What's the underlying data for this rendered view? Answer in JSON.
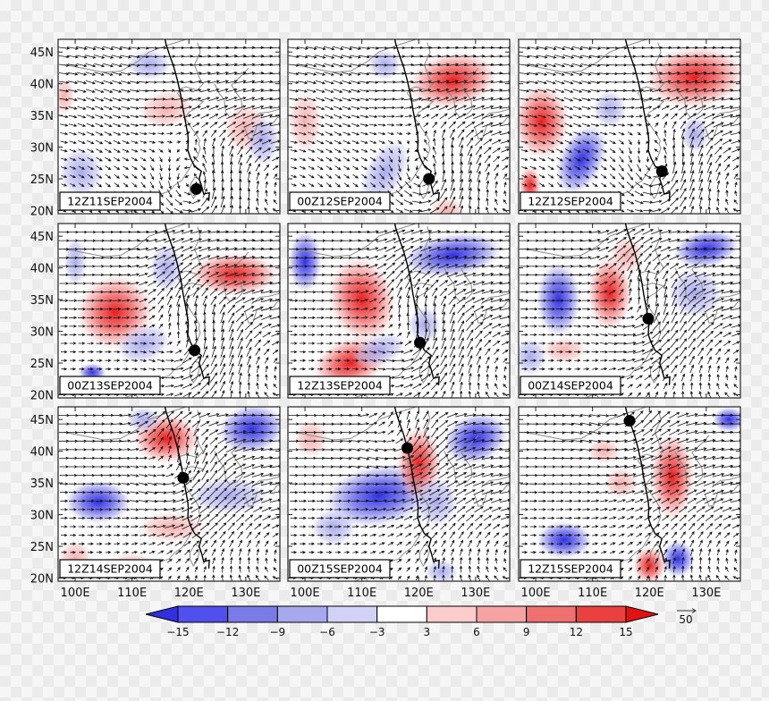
{
  "figure": {
    "y_ticks": [
      "45N",
      "40N",
      "35N",
      "30N",
      "25N",
      "20N"
    ],
    "x_ticks": [
      "100E",
      "110E",
      "120E",
      "130E"
    ],
    "panels": [
      {
        "label": "12Z11SEP2004",
        "typhoon_lon": 121.3,
        "typhoon_lat": 23.4
      },
      {
        "label": "00Z12SEP2004",
        "typhoon_lon": 121.8,
        "typhoon_lat": 25.0
      },
      {
        "label": "12Z12SEP2004",
        "typhoon_lon": 122.2,
        "typhoon_lat": 26.2
      },
      {
        "label": "00Z13SEP2004",
        "typhoon_lon": 121.0,
        "typhoon_lat": 27.0
      },
      {
        "label": "12Z13SEP2004",
        "typhoon_lon": 120.2,
        "typhoon_lat": 28.2
      },
      {
        "label": "00Z14SEP2004",
        "typhoon_lon": 119.8,
        "typhoon_lat": 32.0
      },
      {
        "label": "12Z14SEP2004",
        "typhoon_lon": 119.0,
        "typhoon_lat": 35.8
      },
      {
        "label": "00Z15SEP2004",
        "typhoon_lon": 118.0,
        "typhoon_lat": 40.5
      },
      {
        "label": "12Z15SEP2004",
        "typhoon_lon": 116.5,
        "typhoon_lat": 44.8
      }
    ]
  },
  "colorbar": {
    "labels": [
      "−15",
      "−12",
      "−9",
      "−6",
      "−3",
      "3",
      "6",
      "9",
      "12",
      "15"
    ],
    "colors": [
      "#3030e0",
      "#5050ee",
      "#7a7ae8",
      "#a8a8ee",
      "#d2d2f6",
      "#ffffff",
      "#fbcccc",
      "#f6a2a2",
      "#f07070",
      "#ea4040",
      "#e21212"
    ]
  },
  "vector_key": {
    "label": "50"
  },
  "colors": {
    "track": "#000000",
    "coast": "#8a8a8a",
    "arrow": "#111111",
    "frame": "#222222"
  }
}
